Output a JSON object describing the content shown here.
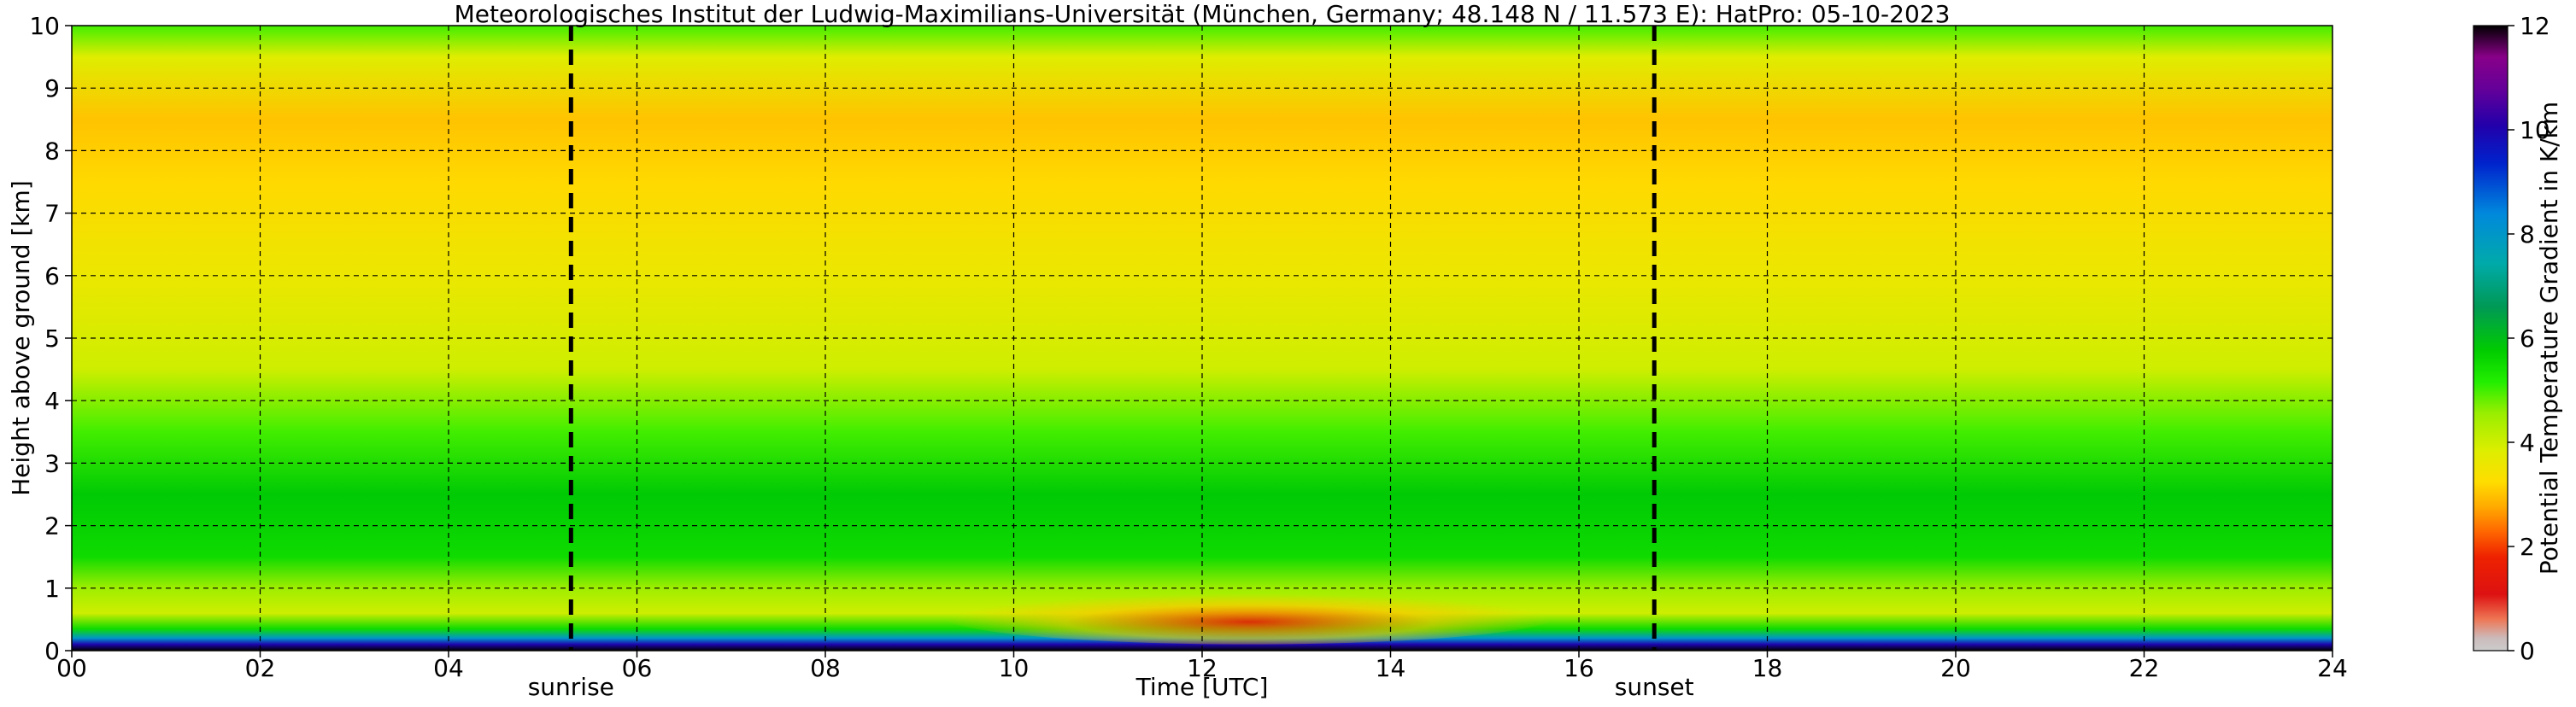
{
  "chart_data": {
    "type": "heatmap",
    "title": "Meteorologisches Institut der Ludwig-Maximilians-Universität (München, Germany; 48.148 N / 11.573 E):    HatPro: 05-10-2023",
    "xlabel": "Time [UTC]",
    "ylabel": "Height above ground [km]",
    "xlim": [
      0,
      24
    ],
    "ylim": [
      0,
      10
    ],
    "x_ticks": [
      {
        "value": 0,
        "label": "00"
      },
      {
        "value": 2,
        "label": "02"
      },
      {
        "value": 4,
        "label": "04"
      },
      {
        "value": 6,
        "label": "06"
      },
      {
        "value": 8,
        "label": "08"
      },
      {
        "value": 10,
        "label": "10"
      },
      {
        "value": 12,
        "label": "12"
      },
      {
        "value": 14,
        "label": "14"
      },
      {
        "value": 16,
        "label": "16"
      },
      {
        "value": 18,
        "label": "18"
      },
      {
        "value": 20,
        "label": "20"
      },
      {
        "value": 22,
        "label": "22"
      },
      {
        "value": 24,
        "label": "24"
      }
    ],
    "y_ticks": [
      0,
      1,
      2,
      3,
      4,
      5,
      6,
      7,
      8,
      9,
      10
    ],
    "grid": true,
    "colorbar": {
      "label": "Potential Temperature Gradient in K/km",
      "range": [
        0,
        12
      ],
      "ticks": [
        0,
        2,
        4,
        6,
        8,
        10,
        12
      ],
      "placement": "right"
    },
    "annotations": [
      {
        "label": "sunrise",
        "x": 5.3
      },
      {
        "label": "sunset",
        "x": 16.8
      }
    ],
    "gradient_profile_km_vs_Kkm": [
      {
        "height": 0.0,
        "value": 12.0
      },
      {
        "height": 0.1,
        "value": 10.0
      },
      {
        "height": 0.2,
        "value": 8.0
      },
      {
        "height": 0.35,
        "value": 5.5
      },
      {
        "height": 0.6,
        "value": 4.0
      },
      {
        "height": 1.0,
        "value": 4.5
      },
      {
        "height": 1.5,
        "value": 5.5
      },
      {
        "height": 2.5,
        "value": 5.8
      },
      {
        "height": 3.5,
        "value": 5.0
      },
      {
        "height": 4.5,
        "value": 4.0
      },
      {
        "height": 6.0,
        "value": 3.6
      },
      {
        "height": 7.5,
        "value": 3.2
      },
      {
        "height": 8.5,
        "value": 3.0
      },
      {
        "height": 9.5,
        "value": 3.8
      },
      {
        "height": 10.0,
        "value": 5.0
      }
    ],
    "afternoon_surface_layer_minimum": 1.5
  }
}
